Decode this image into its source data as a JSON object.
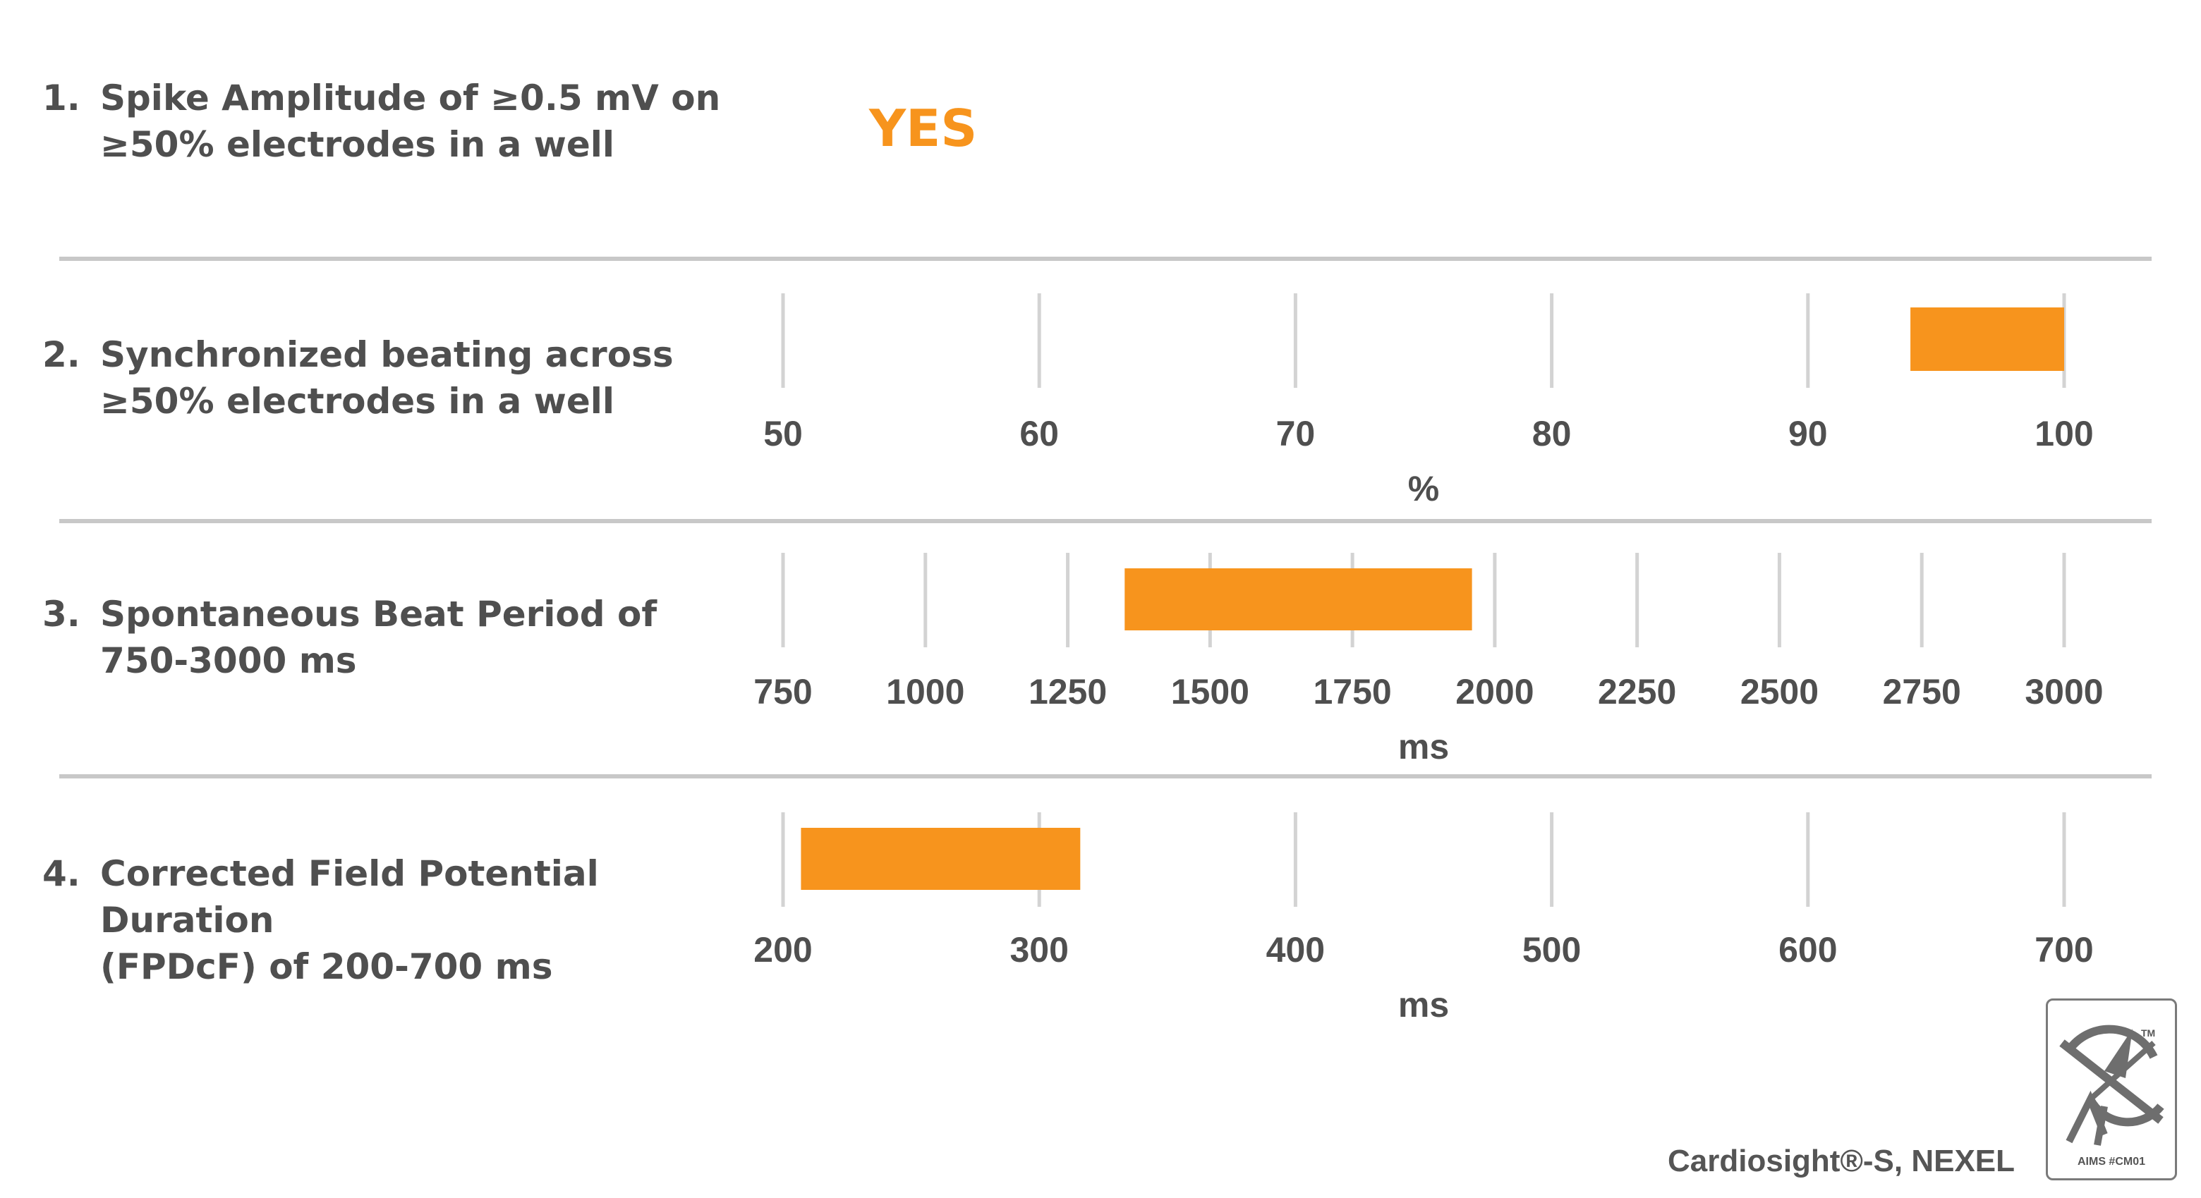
{
  "criteria": [
    {
      "num": "1.",
      "line1": "Spike Amplitude of ≥0.5 mV on",
      "line2": "≥50% electrodes in a well"
    },
    {
      "num": "2.",
      "line1": "Synchronized beating across",
      "line2": "≥50% electrodes in a well"
    },
    {
      "num": "3.",
      "line1": "Spontaneous Beat Period of",
      "line2": "750-3000 ms"
    },
    {
      "num": "4.",
      "line1": "Corrected Field Potential Duration",
      "line2": "(FPDcF) of 200-700 ms"
    }
  ],
  "result_1": "YES",
  "footer": "Cardiosight®-S, NEXEL",
  "logo": {
    "caption": "AIMS #CM01",
    "mark": "TM"
  },
  "colors": {
    "accent": "#f7941d",
    "text": "#4f4f4f",
    "grid": "#d3d3d3"
  },
  "chart_data": [
    {
      "type": "bar",
      "orientation": "horizontal-range",
      "ticks": [
        50,
        60,
        70,
        80,
        90,
        100
      ],
      "xlim": [
        50,
        100
      ],
      "xlabel": "%",
      "range": [
        94,
        100
      ],
      "grid": true
    },
    {
      "type": "bar",
      "orientation": "horizontal-range",
      "ticks": [
        750,
        1000,
        1250,
        1500,
        1750,
        2000,
        2250,
        2500,
        2750,
        3000
      ],
      "xlim": [
        750,
        3000
      ],
      "xlabel": "ms",
      "range": [
        1350,
        1960
      ],
      "grid": true
    },
    {
      "type": "bar",
      "orientation": "horizontal-range",
      "ticks": [
        200,
        300,
        400,
        500,
        600,
        700
      ],
      "xlim": [
        200,
        700
      ],
      "xlabel": "ms",
      "range": [
        207,
        316
      ],
      "grid": true
    }
  ]
}
